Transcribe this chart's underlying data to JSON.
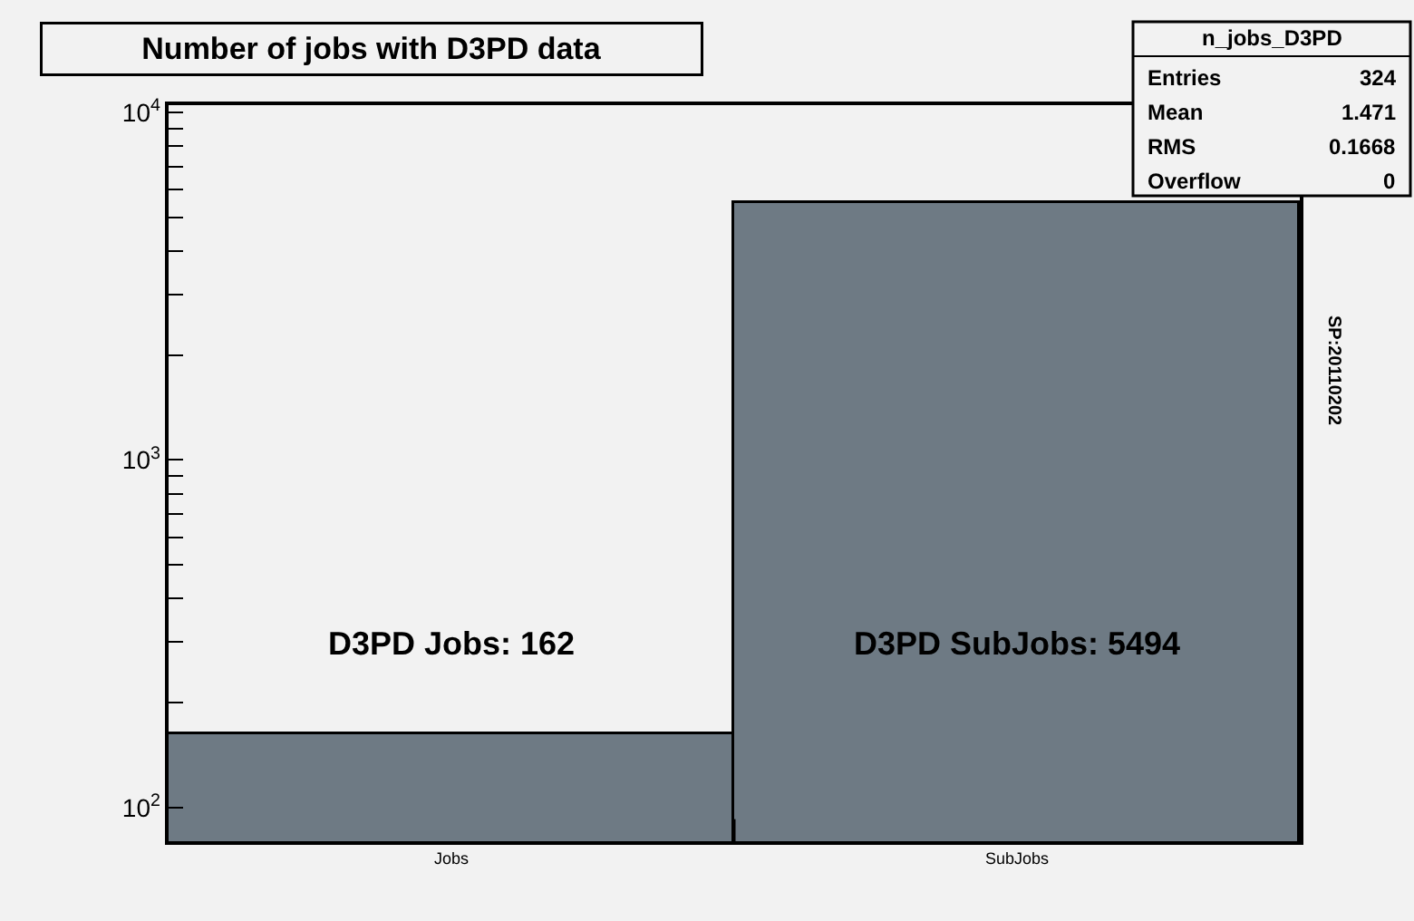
{
  "chart_data": {
    "type": "bar",
    "title": "Number of jobs with D3PD data",
    "categories": [
      "Jobs",
      "SubJobs"
    ],
    "series": [
      {
        "color": "#6e7a84",
        "values": [
          162,
          5494
        ]
      }
    ],
    "log": true,
    "grid": false,
    "legend": false,
    "ylim": [
      80,
      10500
    ],
    "yticks": [
      {
        "value": 100,
        "label": "10$^{2}$"
      },
      {
        "value": 200,
        "label": null
      },
      {
        "value": 300,
        "label": null
      },
      {
        "value": 400,
        "label": null
      },
      {
        "value": 500,
        "label": null
      },
      {
        "value": 600,
        "label": null
      },
      {
        "value": 700,
        "label": null
      },
      {
        "value": 800,
        "label": null
      },
      {
        "value": 900,
        "label": null
      },
      {
        "value": 1000,
        "label": "10$^{3}$"
      },
      {
        "value": 2000,
        "label": null
      },
      {
        "value": 3000,
        "label": null
      },
      {
        "value": 4000,
        "label": null
      },
      {
        "value": 5000,
        "label": null
      },
      {
        "value": 6000,
        "label": null
      },
      {
        "value": 7000,
        "label": null
      },
      {
        "value": 8000,
        "label": null
      },
      {
        "value": 9000,
        "label": null
      },
      {
        "value": 10000,
        "label": "10$^{4}$"
      }
    ],
    "annotations": [
      "D3PD Jobs: 162",
      "D3PD SubJobs: 5494",
      "n_jobs_D3PD",
      "Entries",
      "324",
      "Mean",
      "1.471",
      "RMS",
      "0.1668",
      "Overflow",
      "0",
      "SP:20110202"
    ]
  }
}
